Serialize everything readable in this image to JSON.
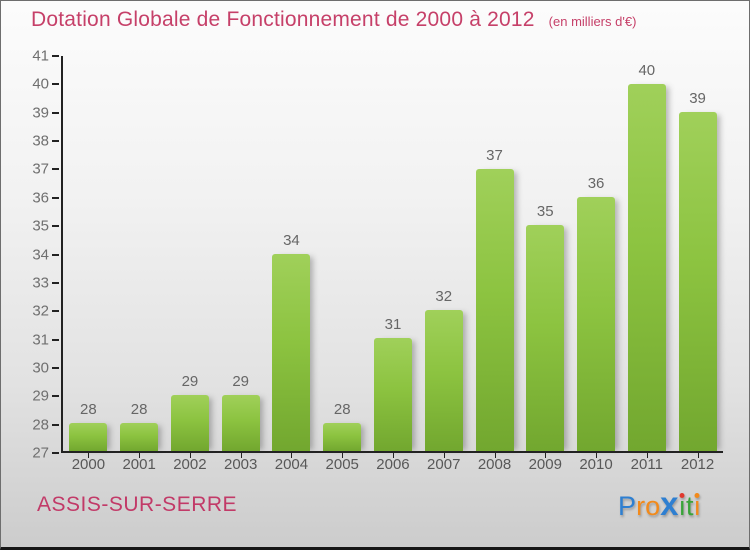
{
  "header": {
    "title": "Dotation Globale de Fonctionnement de 2000 à 2012",
    "subtitle": "(en milliers d'€)",
    "title_color": "#c64069"
  },
  "chart_data": {
    "type": "bar",
    "title": "Dotation Globale de Fonctionnement de 2000 à 2012",
    "subtitle": "(en milliers d'€)",
    "categories": [
      "2000",
      "2001",
      "2002",
      "2003",
      "2004",
      "2005",
      "2006",
      "2007",
      "2008",
      "2009",
      "2010",
      "2011",
      "2012"
    ],
    "values": [
      28,
      28,
      29,
      29,
      34,
      28,
      31,
      32,
      37,
      35,
      36,
      40,
      39
    ],
    "xlabel": "",
    "ylabel": "",
    "ylim": [
      27,
      41
    ],
    "ytick_step": 1,
    "grid": false,
    "legend": false,
    "bar_color_top": "#9ecf58",
    "bar_color_bottom": "#6fa42d",
    "axis_color": "#222222",
    "value_label_color": "#666666",
    "tick_label_color": "#6f6f6f"
  },
  "footer": {
    "location": "ASSIS-SUR-SERRE",
    "location_color": "#c23a68",
    "logo": {
      "text": "Proxiti",
      "letters": [
        {
          "ch": "P",
          "color": "#2e7fd1"
        },
        {
          "ch": "r",
          "color": "#f28a1b"
        },
        {
          "ch": "o",
          "color": "#f28a1b"
        },
        {
          "ch": "x",
          "color": "#2e7fd1",
          "big": true
        },
        {
          "ch": "ı",
          "color": "#3aa43a",
          "dot": "#e0392e"
        },
        {
          "ch": "t",
          "color": "#3aa43a"
        },
        {
          "ch": "ı",
          "color": "#f28a1b",
          "dot": "#f28a1b"
        }
      ]
    }
  }
}
